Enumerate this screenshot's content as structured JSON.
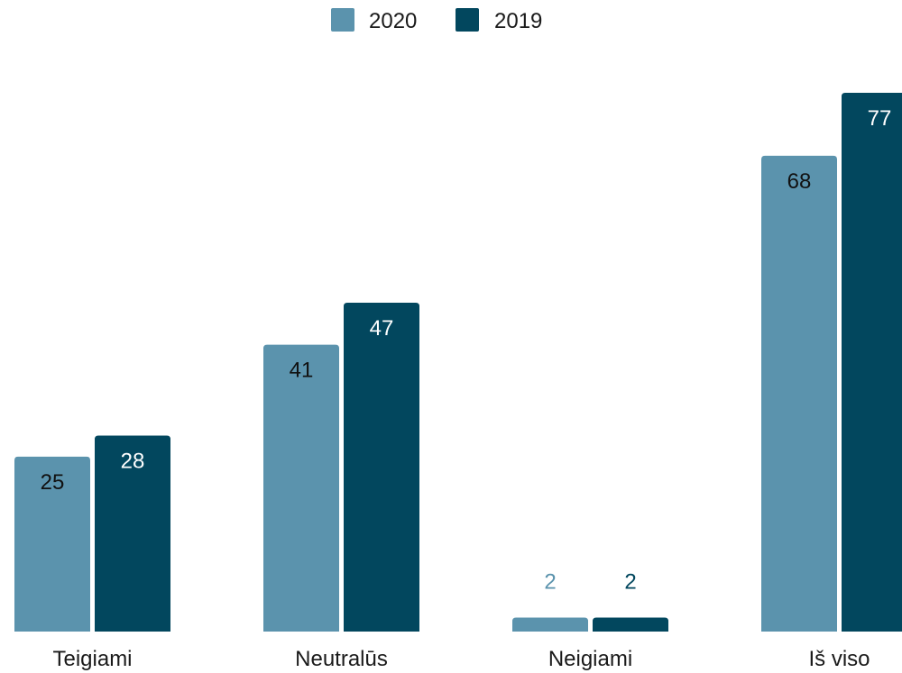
{
  "chart_data": {
    "type": "bar",
    "categories": [
      "Teigiami",
      "Neutralūs",
      "Neigiami",
      "Iš viso"
    ],
    "series": [
      {
        "name": "2020",
        "color": "#5b93ad",
        "values": [
          25,
          41,
          2,
          68
        ]
      },
      {
        "name": "2019",
        "color": "#02475e",
        "values": [
          28,
          47,
          2,
          77
        ]
      }
    ],
    "ylim": [
      0,
      77
    ],
    "grid": false,
    "legend_position": "top-center",
    "data_labels": true
  }
}
